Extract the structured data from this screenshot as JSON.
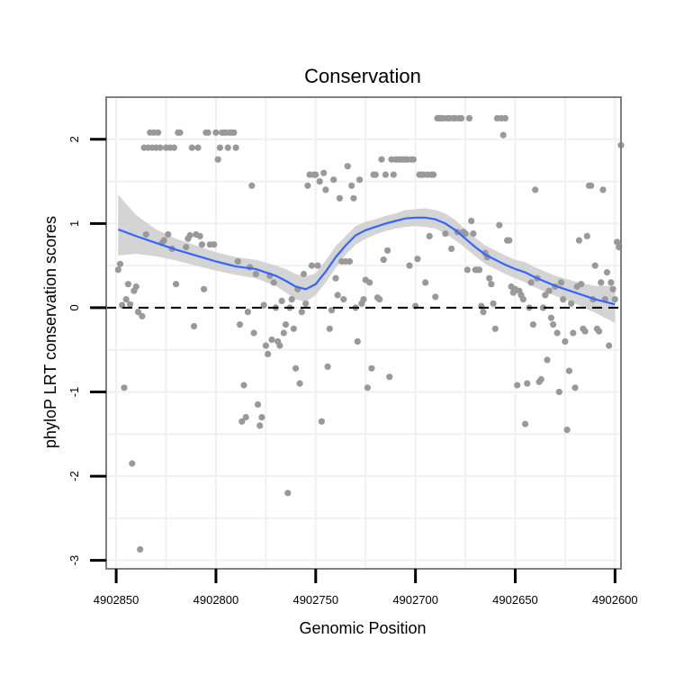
{
  "chart_data": {
    "type": "scatter",
    "title": "Conservation",
    "xlabel": "Genomic Position",
    "ylabel": "phyloP LRT conservation scores",
    "x_reversed": true,
    "xlim": [
      4902855,
      4902597
    ],
    "ylim": [
      -3.1,
      2.5
    ],
    "x_ticks": [
      4902850,
      4902800,
      4902750,
      4902700,
      4902650,
      4902600
    ],
    "x_tick_labels": [
      "4902850",
      "4902800",
      "4902750",
      "4902700",
      "4902650",
      "4902600"
    ],
    "y_ticks": [
      2,
      1,
      0,
      -1,
      -2,
      -3
    ],
    "y_tick_labels": [
      "2",
      "1",
      "0",
      "-1",
      "-2",
      "-3"
    ],
    "reference_line": {
      "y": 0,
      "style": "dashed"
    },
    "colors": {
      "points": "#999999",
      "smooth": "#3366FF",
      "ribbon": "#cccccc",
      "panel_border": "#808080",
      "grid": "#f0f0f0"
    },
    "points": [
      {
        "x": 4902849,
        "y": 0.45
      },
      {
        "x": 4902848,
        "y": 0.52
      },
      {
        "x": 4902847,
        "y": 0.03
      },
      {
        "x": 4902846,
        "y": -0.95
      },
      {
        "x": 4902845,
        "y": 0.1
      },
      {
        "x": 4902844,
        "y": 0.28
      },
      {
        "x": 4902843,
        "y": 0.04
      },
      {
        "x": 4902842,
        "y": -1.85
      },
      {
        "x": 4902841,
        "y": 0.2
      },
      {
        "x": 4902840,
        "y": 0.25
      },
      {
        "x": 4902839,
        "y": -0.05
      },
      {
        "x": 4902838,
        "y": -2.87
      },
      {
        "x": 4902837,
        "y": -0.1
      },
      {
        "x": 4902836,
        "y": 1.9
      },
      {
        "x": 4902835,
        "y": 0.87
      },
      {
        "x": 4902834,
        "y": 1.9
      },
      {
        "x": 4902833,
        "y": 2.08
      },
      {
        "x": 4902832,
        "y": 1.9
      },
      {
        "x": 4902831,
        "y": 2.08
      },
      {
        "x": 4902830,
        "y": 1.9
      },
      {
        "x": 4902829,
        "y": 2.08
      },
      {
        "x": 4902828,
        "y": 1.9
      },
      {
        "x": 4902827,
        "y": 0.77
      },
      {
        "x": 4902826,
        "y": 0.8
      },
      {
        "x": 4902825,
        "y": 1.9
      },
      {
        "x": 4902824,
        "y": 0.87
      },
      {
        "x": 4902823,
        "y": 1.9
      },
      {
        "x": 4902822,
        "y": 0.7
      },
      {
        "x": 4902821,
        "y": 1.9
      },
      {
        "x": 4902820,
        "y": 0.28
      },
      {
        "x": 4902819,
        "y": 2.08
      },
      {
        "x": 4902818,
        "y": 2.08
      },
      {
        "x": 4902815,
        "y": 0.72
      },
      {
        "x": 4902814,
        "y": 0.82
      },
      {
        "x": 4902813,
        "y": 0.86
      },
      {
        "x": 4902812,
        "y": 1.9
      },
      {
        "x": 4902811,
        "y": -0.22
      },
      {
        "x": 4902810,
        "y": 0.87
      },
      {
        "x": 4902809,
        "y": 1.9
      },
      {
        "x": 4902808,
        "y": 0.85
      },
      {
        "x": 4902807,
        "y": 0.75
      },
      {
        "x": 4902806,
        "y": 0.22
      },
      {
        "x": 4902805,
        "y": 2.08
      },
      {
        "x": 4902804,
        "y": 2.08
      },
      {
        "x": 4902803,
        "y": 0.75
      },
      {
        "x": 4902801,
        "y": 0.75
      },
      {
        "x": 4902800,
        "y": 2.08
      },
      {
        "x": 4902799,
        "y": 1.76
      },
      {
        "x": 4902798,
        "y": 1.9
      },
      {
        "x": 4902797,
        "y": 2.08
      },
      {
        "x": 4902796,
        "y": 2.08
      },
      {
        "x": 4902795,
        "y": 2.08
      },
      {
        "x": 4902794,
        "y": 1.9
      },
      {
        "x": 4902793,
        "y": 2.08
      },
      {
        "x": 4902792,
        "y": 2.08
      },
      {
        "x": 4902791,
        "y": 2.08
      },
      {
        "x": 4902790,
        "y": 1.9
      },
      {
        "x": 4902789,
        "y": 0.55
      },
      {
        "x": 4902788,
        "y": -0.2
      },
      {
        "x": 4902787,
        "y": -1.35
      },
      {
        "x": 4902786,
        "y": -0.92
      },
      {
        "x": 4902785,
        "y": -1.3
      },
      {
        "x": 4902784,
        "y": -0.05
      },
      {
        "x": 4902783,
        "y": 0.48
      },
      {
        "x": 4902782,
        "y": 1.45
      },
      {
        "x": 4902781,
        "y": -0.3
      },
      {
        "x": 4902780,
        "y": 0.4
      },
      {
        "x": 4902779,
        "y": -1.15
      },
      {
        "x": 4902778,
        "y": -1.4
      },
      {
        "x": 4902777,
        "y": -1.3
      },
      {
        "x": 4902776,
        "y": 0.03
      },
      {
        "x": 4902775,
        "y": -0.45
      },
      {
        "x": 4902774,
        "y": -0.55
      },
      {
        "x": 4902773,
        "y": 0.38
      },
      {
        "x": 4902772,
        "y": -0.38
      },
      {
        "x": 4902771,
        "y": 0.3
      },
      {
        "x": 4902770,
        "y": 0.0
      },
      {
        "x": 4902769,
        "y": -0.4
      },
      {
        "x": 4902768,
        "y": -0.45
      },
      {
        "x": 4902767,
        "y": 0.08
      },
      {
        "x": 4902766,
        "y": -0.3
      },
      {
        "x": 4902765,
        "y": -0.2
      },
      {
        "x": 4902764,
        "y": -2.2
      },
      {
        "x": 4902763,
        "y": 0.0
      },
      {
        "x": 4902762,
        "y": 0.1
      },
      {
        "x": 4902761,
        "y": -0.25
      },
      {
        "x": 4902760,
        "y": -0.72
      },
      {
        "x": 4902759,
        "y": 0.22
      },
      {
        "x": 4902758,
        "y": -0.9
      },
      {
        "x": 4902757,
        "y": -0.05
      },
      {
        "x": 4902756,
        "y": 0.4
      },
      {
        "x": 4902755,
        "y": 0.05
      },
      {
        "x": 4902754,
        "y": 1.45
      },
      {
        "x": 4902753,
        "y": 1.58
      },
      {
        "x": 4902752,
        "y": 0.5
      },
      {
        "x": 4902751,
        "y": 1.58
      },
      {
        "x": 4902750,
        "y": 1.58
      },
      {
        "x": 4902749,
        "y": 0.5
      },
      {
        "x": 4902748,
        "y": 1.5
      },
      {
        "x": 4902747,
        "y": -1.35
      },
      {
        "x": 4902746,
        "y": 1.6
      },
      {
        "x": 4902745,
        "y": 1.4
      },
      {
        "x": 4902744,
        "y": -0.7
      },
      {
        "x": 4902743,
        "y": -0.25
      },
      {
        "x": 4902742,
        "y": -0.03
      },
      {
        "x": 4902741,
        "y": 1.52
      },
      {
        "x": 4902740,
        "y": 0.35
      },
      {
        "x": 4902739,
        "y": 0.15
      },
      {
        "x": 4902738,
        "y": 1.3
      },
      {
        "x": 4902737,
        "y": 0.55
      },
      {
        "x": 4902736,
        "y": 0.1
      },
      {
        "x": 4902735,
        "y": 0.55
      },
      {
        "x": 4902734,
        "y": 1.68
      },
      {
        "x": 4902733,
        "y": 0.55
      },
      {
        "x": 4902732,
        "y": 1.45
      },
      {
        "x": 4902731,
        "y": 1.3
      },
      {
        "x": 4902730,
        "y": 0.0
      },
      {
        "x": 4902729,
        "y": -0.4
      },
      {
        "x": 4902728,
        "y": 1.52
      },
      {
        "x": 4902727,
        "y": 0.05
      },
      {
        "x": 4902726,
        "y": 0.1
      },
      {
        "x": 4902725,
        "y": 0.33
      },
      {
        "x": 4902724,
        "y": -0.95
      },
      {
        "x": 4902723,
        "y": 0.3
      },
      {
        "x": 4902722,
        "y": -0.72
      },
      {
        "x": 4902721,
        "y": 1.58
      },
      {
        "x": 4902720,
        "y": 1.58
      },
      {
        "x": 4902719,
        "y": 0.12
      },
      {
        "x": 4902718,
        "y": 0.1
      },
      {
        "x": 4902717,
        "y": 1.76
      },
      {
        "x": 4902716,
        "y": 0.57
      },
      {
        "x": 4902715,
        "y": 1.58
      },
      {
        "x": 4902714,
        "y": 0.68
      },
      {
        "x": 4902713,
        "y": -0.82
      },
      {
        "x": 4902712,
        "y": 1.76
      },
      {
        "x": 4902711,
        "y": 1.58
      },
      {
        "x": 4902710,
        "y": 1.76
      },
      {
        "x": 4902709,
        "y": 1.76
      },
      {
        "x": 4902708,
        "y": 1.76
      },
      {
        "x": 4902707,
        "y": 1.76
      },
      {
        "x": 4902706,
        "y": 1.76
      },
      {
        "x": 4902705,
        "y": 1.76
      },
      {
        "x": 4902704,
        "y": 1.76
      },
      {
        "x": 4902703,
        "y": 0.5
      },
      {
        "x": 4902702,
        "y": 1.76
      },
      {
        "x": 4902701,
        "y": 1.76
      },
      {
        "x": 4902700,
        "y": 0.02
      },
      {
        "x": 4902699,
        "y": 0.58
      },
      {
        "x": 4902698,
        "y": 1.58
      },
      {
        "x": 4902697,
        "y": 1.58
      },
      {
        "x": 4902696,
        "y": 1.58
      },
      {
        "x": 4902695,
        "y": 0.3
      },
      {
        "x": 4902694,
        "y": 1.58
      },
      {
        "x": 4902693,
        "y": 0.85
      },
      {
        "x": 4902692,
        "y": 1.58
      },
      {
        "x": 4902691,
        "y": 1.58
      },
      {
        "x": 4902690,
        "y": 0.13
      },
      {
        "x": 4902689,
        "y": 2.25
      },
      {
        "x": 4902688,
        "y": 2.25
      },
      {
        "x": 4902687,
        "y": 2.25
      },
      {
        "x": 4902686,
        "y": 2.25
      },
      {
        "x": 4902685,
        "y": 0.88
      },
      {
        "x": 4902684,
        "y": 2.25
      },
      {
        "x": 4902683,
        "y": 2.25
      },
      {
        "x": 4902682,
        "y": 0.7
      },
      {
        "x": 4902681,
        "y": 2.25
      },
      {
        "x": 4902680,
        "y": 2.25
      },
      {
        "x": 4902679,
        "y": 0.9
      },
      {
        "x": 4902678,
        "y": 2.25
      },
      {
        "x": 4902677,
        "y": 2.25
      },
      {
        "x": 4902676,
        "y": 0.9
      },
      {
        "x": 4902675,
        "y": 0.88
      },
      {
        "x": 4902674,
        "y": 0.45
      },
      {
        "x": 4902673,
        "y": 2.25
      },
      {
        "x": 4902672,
        "y": 1.03
      },
      {
        "x": 4902671,
        "y": 0.88
      },
      {
        "x": 4902670,
        "y": 0.45
      },
      {
        "x": 4902669,
        "y": 0.45
      },
      {
        "x": 4902668,
        "y": 0.45
      },
      {
        "x": 4902667,
        "y": 0.02
      },
      {
        "x": 4902666,
        "y": -0.05
      },
      {
        "x": 4902665,
        "y": 0.65
      },
      {
        "x": 4902664,
        "y": 0.6
      },
      {
        "x": 4902663,
        "y": 0.35
      },
      {
        "x": 4902662,
        "y": 0.28
      },
      {
        "x": 4902661,
        "y": 0.05
      },
      {
        "x": 4902660,
        "y": -0.25
      },
      {
        "x": 4902659,
        "y": 2.25
      },
      {
        "x": 4902658,
        "y": 0.98
      },
      {
        "x": 4902657,
        "y": 2.25
      },
      {
        "x": 4902656,
        "y": 2.05
      },
      {
        "x": 4902655,
        "y": 2.25
      },
      {
        "x": 4902654,
        "y": 0.8
      },
      {
        "x": 4902653,
        "y": 0.8
      },
      {
        "x": 4902652,
        "y": 0.25
      },
      {
        "x": 4902651,
        "y": 0.18
      },
      {
        "x": 4902650,
        "y": 0.22
      },
      {
        "x": 4902649,
        "y": -0.92
      },
      {
        "x": 4902648,
        "y": 0.2
      },
      {
        "x": 4902647,
        "y": 0.15
      },
      {
        "x": 4902646,
        "y": 0.1
      },
      {
        "x": 4902645,
        "y": -1.38
      },
      {
        "x": 4902644,
        "y": -0.9
      },
      {
        "x": 4902643,
        "y": 0.0
      },
      {
        "x": 4902642,
        "y": 0.3
      },
      {
        "x": 4902641,
        "y": -0.2
      },
      {
        "x": 4902640,
        "y": 1.4
      },
      {
        "x": 4902639,
        "y": 0.35
      },
      {
        "x": 4902638,
        "y": -0.88
      },
      {
        "x": 4902637,
        "y": -0.85
      },
      {
        "x": 4902636,
        "y": 0.0
      },
      {
        "x": 4902635,
        "y": 0.15
      },
      {
        "x": 4902634,
        "y": -0.62
      },
      {
        "x": 4902633,
        "y": 0.2
      },
      {
        "x": 4902632,
        "y": -0.12
      },
      {
        "x": 4902631,
        "y": -0.2
      },
      {
        "x": 4902630,
        "y": 0.25
      },
      {
        "x": 4902629,
        "y": -0.3
      },
      {
        "x": 4902628,
        "y": -1.0
      },
      {
        "x": 4902627,
        "y": 0.3
      },
      {
        "x": 4902626,
        "y": 0.1
      },
      {
        "x": 4902625,
        "y": -0.4
      },
      {
        "x": 4902624,
        "y": -1.45
      },
      {
        "x": 4902623,
        "y": -0.75
      },
      {
        "x": 4902622,
        "y": 0.05
      },
      {
        "x": 4902621,
        "y": -0.3
      },
      {
        "x": 4902620,
        "y": -0.95
      },
      {
        "x": 4902619,
        "y": 0.25
      },
      {
        "x": 4902618,
        "y": 0.8
      },
      {
        "x": 4902617,
        "y": 0.28
      },
      {
        "x": 4902616,
        "y": -0.25
      },
      {
        "x": 4902615,
        "y": -0.28
      },
      {
        "x": 4902614,
        "y": 0.85
      },
      {
        "x": 4902613,
        "y": 1.45
      },
      {
        "x": 4902612,
        "y": 1.45
      },
      {
        "x": 4902611,
        "y": 0.1
      },
      {
        "x": 4902610,
        "y": 0.5
      },
      {
        "x": 4902609,
        "y": -0.25
      },
      {
        "x": 4902608,
        "y": -0.28
      },
      {
        "x": 4902607,
        "y": 0.3
      },
      {
        "x": 4902606,
        "y": 1.4
      },
      {
        "x": 4902605,
        "y": 0.1
      },
      {
        "x": 4902604,
        "y": 0.42
      },
      {
        "x": 4902603,
        "y": -0.45
      },
      {
        "x": 4902602,
        "y": 0.3
      },
      {
        "x": 4902601,
        "y": 0.22
      },
      {
        "x": 4902600,
        "y": 0.1
      },
      {
        "x": 4902599,
        "y": 0.78
      },
      {
        "x": 4902598,
        "y": 0.72
      },
      {
        "x": 4902597,
        "y": 1.93
      }
    ],
    "smooth": {
      "x": [
        4902849,
        4902840,
        4902830,
        4902820,
        4902810,
        4902800,
        4902790,
        4902780,
        4902770,
        4902765,
        4902760,
        4902755,
        4902750,
        4902745,
        4902740,
        4902735,
        4902730,
        4902725,
        4902720,
        4902715,
        4902710,
        4902705,
        4902700,
        4902695,
        4902690,
        4902685,
        4902680,
        4902675,
        4902670,
        4902665,
        4902660,
        4902655,
        4902650,
        4902645,
        4902640,
        4902630,
        4902620,
        4902610,
        4902600
      ],
      "y": [
        0.93,
        0.85,
        0.77,
        0.69,
        0.62,
        0.55,
        0.49,
        0.46,
        0.38,
        0.32,
        0.25,
        0.22,
        0.28,
        0.43,
        0.6,
        0.74,
        0.86,
        0.92,
        0.96,
        1.0,
        1.03,
        1.06,
        1.07,
        1.07,
        1.05,
        1.0,
        0.92,
        0.82,
        0.72,
        0.63,
        0.57,
        0.51,
        0.46,
        0.42,
        0.36,
        0.26,
        0.18,
        0.1,
        0.04
      ],
      "lower": [
        0.62,
        0.64,
        0.61,
        0.56,
        0.5,
        0.44,
        0.39,
        0.35,
        0.26,
        0.18,
        0.1,
        0.07,
        0.15,
        0.3,
        0.47,
        0.63,
        0.75,
        0.82,
        0.87,
        0.91,
        0.94,
        0.96,
        0.97,
        0.96,
        0.94,
        0.88,
        0.8,
        0.71,
        0.61,
        0.52,
        0.46,
        0.4,
        0.35,
        0.3,
        0.24,
        0.14,
        0.05,
        -0.06,
        -0.18
      ],
      "upper": [
        1.34,
        1.1,
        0.93,
        0.82,
        0.74,
        0.66,
        0.6,
        0.57,
        0.5,
        0.46,
        0.4,
        0.37,
        0.41,
        0.56,
        0.73,
        0.85,
        0.97,
        1.02,
        1.05,
        1.09,
        1.12,
        1.16,
        1.17,
        1.18,
        1.16,
        1.12,
        1.04,
        0.93,
        0.83,
        0.74,
        0.68,
        0.62,
        0.57,
        0.54,
        0.48,
        0.38,
        0.31,
        0.26,
        0.26
      ]
    }
  }
}
